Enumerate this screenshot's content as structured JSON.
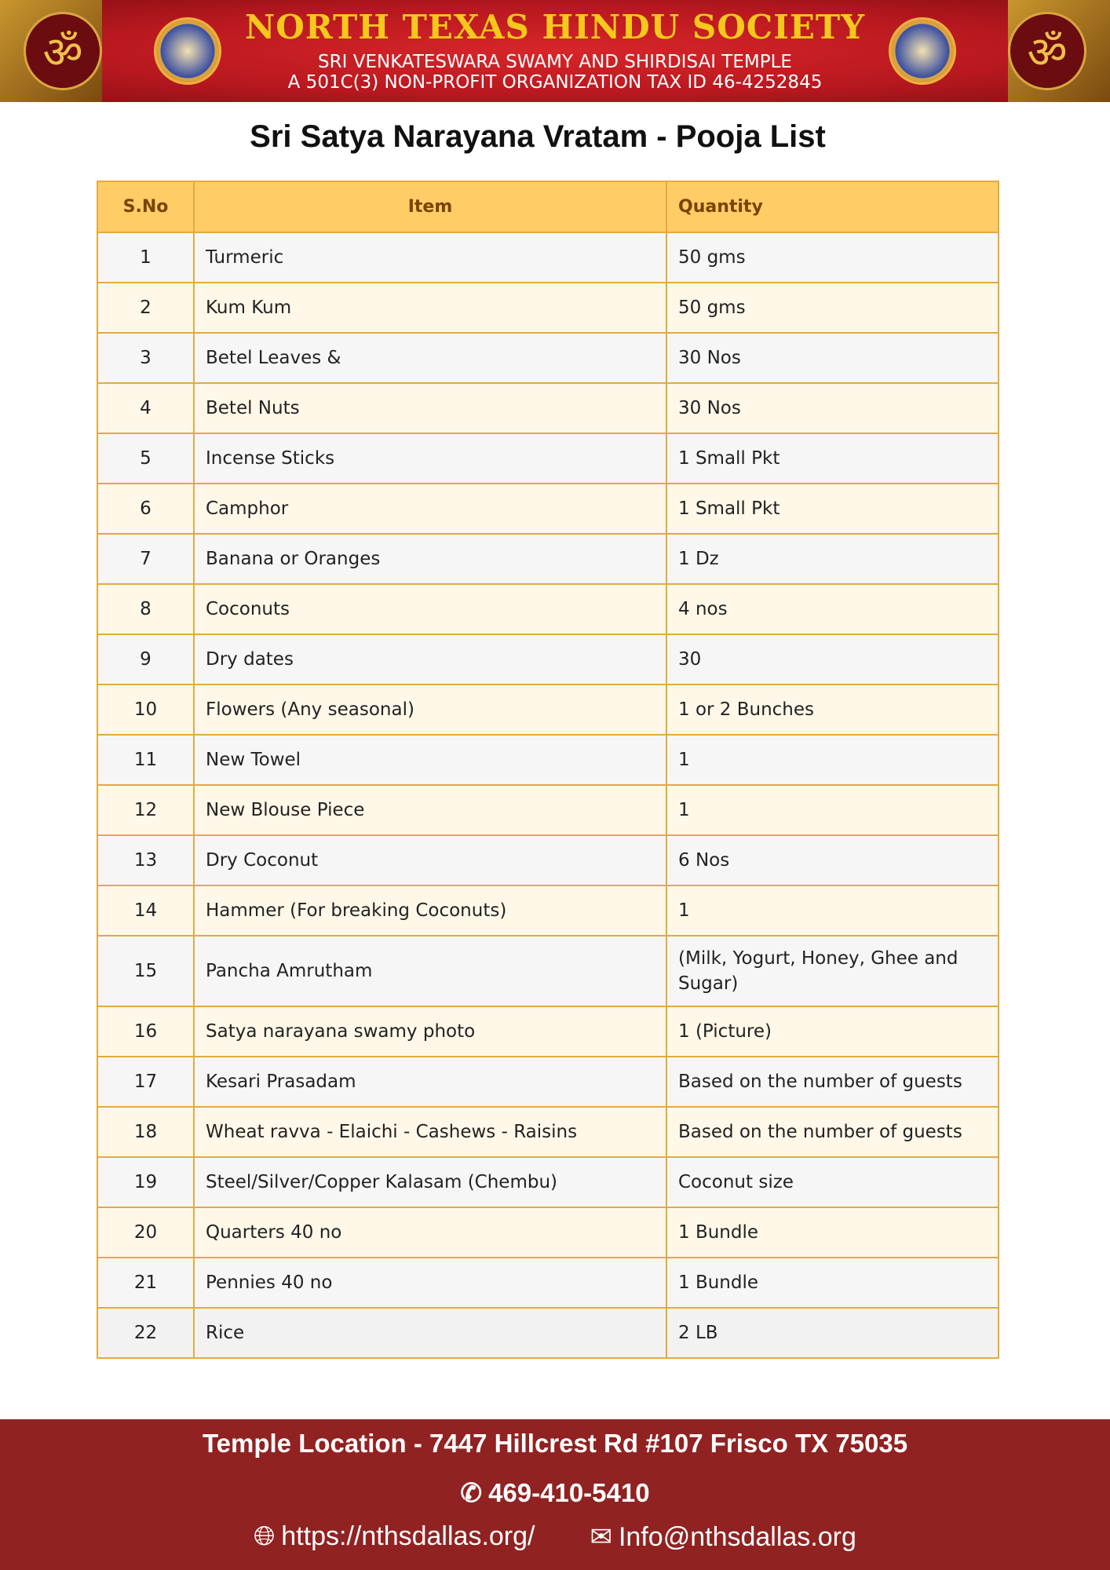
{
  "banner": {
    "org_name": "NORTH TEXAS HINDU SOCIETY",
    "subtitle1": "SRI VENKATESWARA SWAMY AND SHIRDISAI TEMPLE",
    "subtitle2": "A 501C(3) NON-PROFIT ORGANIZATION TAX ID 46-4252845",
    "om_symbol": "ॐ"
  },
  "title": "Sri Satya Narayana Vratam - Pooja List",
  "table": {
    "headers": [
      "S.No",
      "Item",
      "Quantity"
    ],
    "rows": [
      [
        "1",
        "Turmeric",
        "50 gms"
      ],
      [
        "2",
        "Kum Kum",
        "50 gms"
      ],
      [
        "3",
        "Betel Leaves &",
        "30 Nos"
      ],
      [
        "4",
        "Betel Nuts",
        "30 Nos"
      ],
      [
        "5",
        "Incense Sticks",
        "1 Small Pkt"
      ],
      [
        "6",
        "Camphor",
        "1 Small Pkt"
      ],
      [
        "7",
        "Banana or Oranges",
        "1 Dz"
      ],
      [
        "8",
        "Coconuts",
        "4 nos"
      ],
      [
        "9",
        "Dry dates",
        "30"
      ],
      [
        "10",
        "Flowers (Any seasonal)",
        "1 or 2 Bunches"
      ],
      [
        "11",
        "New Towel",
        "1"
      ],
      [
        "12",
        "New Blouse Piece",
        "1"
      ],
      [
        "13",
        "Dry Coconut",
        "6 Nos"
      ],
      [
        "14",
        "Hammer (For breaking Coconuts)",
        "1"
      ],
      [
        "15",
        "Pancha Amrutham",
        "(Milk, Yogurt, Honey, Ghee and Sugar)"
      ],
      [
        "16",
        "Satya narayana swamy photo",
        "1 (Picture)"
      ],
      [
        "17",
        "Kesari Prasadam",
        "Based on the number of guests"
      ],
      [
        "18",
        "Wheat ravva - Elaichi - Cashews - Raisins",
        "Based on the number of guests"
      ],
      [
        "19",
        "Steel/Silver/Copper Kalasam (Chembu)",
        "Coconut size"
      ],
      [
        "20",
        "Quarters 40 no",
        "1 Bundle"
      ],
      [
        "21",
        "Pennies 40 no",
        "1 Bundle"
      ],
      [
        "22",
        "Rice",
        "2 LB"
      ]
    ]
  },
  "footer": {
    "address": "Temple Location - 7447 Hillcrest Rd #107 Frisco TX 75035",
    "phone": "469-410-5410",
    "website": "https://nthsdallas.org/",
    "email": "Info@nthsdallas.org"
  },
  "colors": {
    "header_bg": "#ffcc66",
    "border": "#e2ab3e",
    "footer_bg": "#912222",
    "banner_red": "#d7262a",
    "banner_gold": "#f4c81c"
  }
}
